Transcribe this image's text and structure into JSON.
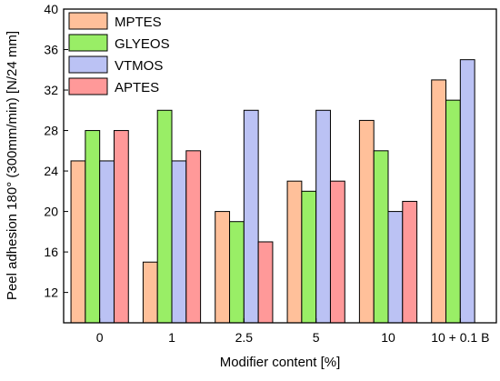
{
  "chart_data": {
    "type": "bar",
    "title": "",
    "xlabel": "Modifier content [%]",
    "ylabel": "Peel adhesion 180° (300mm/min) [N/24 mm]",
    "categories": [
      "0",
      "1",
      "2.5",
      "5",
      "10",
      "10 + 0.1 B"
    ],
    "ylim": [
      9,
      40
    ],
    "yticks": [
      12,
      16,
      20,
      24,
      28,
      32,
      36,
      40
    ],
    "grid": false,
    "legend_position": "top-left",
    "series": [
      {
        "name": "MPTES",
        "color": "#FFC09A",
        "values": [
          25,
          15,
          20,
          23,
          29,
          33
        ]
      },
      {
        "name": "GLYEOS",
        "color": "#99EE66",
        "values": [
          28,
          30,
          19,
          22,
          26,
          31
        ]
      },
      {
        "name": "VTMOS",
        "color": "#BBC2F4",
        "values": [
          25,
          25,
          30,
          30,
          20,
          35
        ]
      },
      {
        "name": "APTES",
        "color": "#FF9999",
        "values": [
          28,
          26,
          17,
          23,
          21,
          null
        ]
      }
    ]
  }
}
